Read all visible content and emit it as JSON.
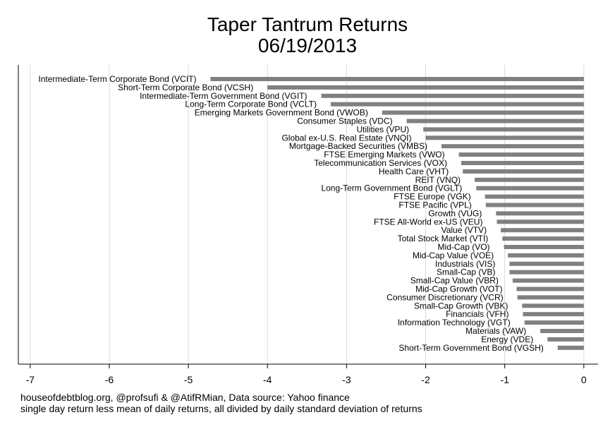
{
  "title": "Taper Tantrum Returns",
  "subtitle": "06/19/2013",
  "footnote": {
    "line1": "houseofdebtblog.org, @profsufi & @AtifRMian, Data source: Yahoo finance",
    "line2": "single day return less mean of daily returns, all divided by daily standard deviation of returns"
  },
  "colors": {
    "bar": "#808080",
    "grid": "#d9d9d9",
    "axis": "#000000"
  },
  "chart_data": {
    "type": "bar",
    "orientation": "horizontal",
    "grid": true,
    "xlim": [
      -7.15,
      0.18
    ],
    "xticks": [
      -7,
      -6,
      -5,
      -4,
      -3,
      -2,
      -1,
      0
    ],
    "xtick_labels": [
      "-7",
      "-6",
      "-5",
      "-4",
      "-3",
      "-2",
      "-1",
      "0"
    ],
    "categories": [
      "Intermediate-Term Corporate Bond (VCIT)",
      "Short-Term Corporate Bond (VCSH)",
      "Intermediate-Term Government Bond (VGIT)",
      "Long-Term Corporate Bond (VCLT)",
      "Emerging Markets Government Bond (VWOB)",
      "Consumer Staples (VDC)",
      "Utilities (VPU)",
      "Global ex-U.S. Real Estate (VNQI)",
      "Mortgage-Backed Securities (VMBS)",
      "FTSE Emerging Markets (VWO)",
      "Telecommunication Services (VOX)",
      "Health Care (VHT)",
      "REIT (VNQ)",
      "Long-Term Government Bond (VGLT)",
      "FTSE Europe (VGK)",
      "FTSE Pacific (VPL)",
      "Growth (VUG)",
      "FTSE All-World ex-US (VEU)",
      "Value (VTV)",
      "Total Stock Market (VTI)",
      "Mid-Cap (VO)",
      "Mid-Cap Value (VOE)",
      "Industrials (VIS)",
      "Small-Cap (VB)",
      "Small-Cap Value (VBR)",
      "Mid-Cap Growth (VOT)",
      "Consumer Discretionary (VCR)",
      "Small-Cap Growth (VBK)",
      "Financials (VFH)",
      "Information Technology (VGT)",
      "Materials (VAW)",
      "Energy (VDE)",
      "Short-Term Government Bond (VGSH)"
    ],
    "values": [
      -4.72,
      -4.0,
      -3.32,
      -3.2,
      -2.55,
      -2.24,
      -2.03,
      -2.0,
      -1.8,
      -1.58,
      -1.55,
      -1.53,
      -1.38,
      -1.36,
      -1.25,
      -1.24,
      -1.11,
      -1.1,
      -1.05,
      -1.03,
      -1.01,
      -0.96,
      -0.94,
      -0.94,
      -0.9,
      -0.85,
      -0.84,
      -0.78,
      -0.77,
      -0.75,
      -0.55,
      -0.46,
      -0.33
    ]
  }
}
